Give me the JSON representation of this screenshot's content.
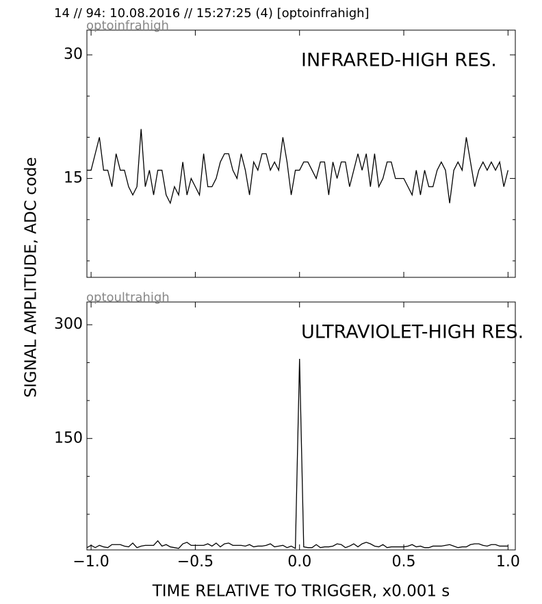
{
  "header": "14 // 94:   10.08.2016 // 15:27:25 (4)  [optoinfrahigh]",
  "xlabel": "TIME RELATIVE TO TRIGGER,   x0.001 s",
  "ylabel": "SIGNAL AMPLITUDE,  ADC code",
  "chart_data": [
    {
      "type": "line",
      "subtitle": "optoinfrahigh",
      "annotation": "INFRARED-HIGH RES.",
      "color": "#000000",
      "x": [
        -1.02,
        -1.0,
        -0.98,
        -0.96,
        -0.94,
        -0.92,
        -0.9,
        -0.88,
        -0.86,
        -0.84,
        -0.82,
        -0.8,
        -0.78,
        -0.76,
        -0.74,
        -0.72,
        -0.7,
        -0.68,
        -0.66,
        -0.64,
        -0.62,
        -0.6,
        -0.58,
        -0.56,
        -0.54,
        -0.52,
        -0.5,
        -0.48,
        -0.46,
        -0.44,
        -0.42,
        -0.4,
        -0.38,
        -0.36,
        -0.34,
        -0.32,
        -0.3,
        -0.28,
        -0.26,
        -0.24,
        -0.22,
        -0.2,
        -0.18,
        -0.16,
        -0.14,
        -0.12,
        -0.1,
        -0.08,
        -0.06,
        -0.04,
        -0.02,
        0.0,
        0.02,
        0.04,
        0.06,
        0.08,
        0.1,
        0.12,
        0.14,
        0.16,
        0.18,
        0.2,
        0.22,
        0.24,
        0.26,
        0.28,
        0.3,
        0.32,
        0.34,
        0.36,
        0.38,
        0.4,
        0.42,
        0.44,
        0.46,
        0.48,
        0.5,
        0.52,
        0.54,
        0.56,
        0.58,
        0.6,
        0.62,
        0.64,
        0.66,
        0.68,
        0.7,
        0.72,
        0.74,
        0.76,
        0.78,
        0.8,
        0.82,
        0.84,
        0.86,
        0.88,
        0.9,
        0.92,
        0.94,
        0.96,
        0.98,
        1.0
      ],
      "values": [
        16,
        16,
        18,
        20,
        16,
        16,
        14,
        18,
        16,
        16,
        14,
        13,
        14,
        21,
        14,
        16,
        13,
        16,
        16,
        13,
        12,
        14,
        13,
        17,
        13,
        15,
        14,
        13,
        18,
        14,
        14,
        15,
        17,
        18,
        18,
        16,
        15,
        18,
        16,
        13,
        17,
        16,
        18,
        18,
        16,
        17,
        16,
        20,
        17,
        13,
        16,
        16,
        17,
        17,
        16,
        15,
        17,
        17,
        13,
        17,
        15,
        17,
        17,
        14,
        16,
        18,
        16,
        18,
        14,
        18,
        14,
        15,
        17,
        17,
        15,
        15,
        15,
        14,
        13,
        16,
        13,
        16,
        14,
        14,
        16,
        17,
        16,
        12,
        16,
        17,
        16,
        20,
        17,
        14,
        16,
        17,
        16,
        17,
        16,
        17,
        14,
        16
      ],
      "xlim": [
        -1.02,
        1.035
      ],
      "ylim": [
        3,
        33
      ],
      "xticks": [
        {
          "value": -1.0,
          "label": "−1.0"
        },
        {
          "value": -0.5,
          "label": "−0.5"
        },
        {
          "value": 0.0,
          "label": "0.0"
        },
        {
          "value": 0.5,
          "label": "0.5"
        },
        {
          "value": 1.0,
          "label": "1.0"
        }
      ],
      "yticks": [
        15,
        30
      ],
      "yminorticks": [
        5,
        10,
        20,
        25
      ]
    },
    {
      "type": "line",
      "subtitle": "optoultrahigh",
      "annotation": "ULTRAVIOLET-HIGH RES.",
      "color": "#000000",
      "x": [
        -1.02,
        -1.0,
        -0.98,
        -0.96,
        -0.94,
        -0.92,
        -0.9,
        -0.88,
        -0.86,
        -0.84,
        -0.82,
        -0.8,
        -0.78,
        -0.76,
        -0.74,
        -0.72,
        -0.7,
        -0.68,
        -0.66,
        -0.64,
        -0.62,
        -0.6,
        -0.58,
        -0.56,
        -0.54,
        -0.52,
        -0.5,
        -0.48,
        -0.46,
        -0.44,
        -0.42,
        -0.4,
        -0.38,
        -0.36,
        -0.34,
        -0.32,
        -0.3,
        -0.28,
        -0.26,
        -0.24,
        -0.22,
        -0.2,
        -0.18,
        -0.16,
        -0.14,
        -0.12,
        -0.1,
        -0.08,
        -0.06,
        -0.04,
        -0.02,
        0.0,
        0.02,
        0.04,
        0.06,
        0.08,
        0.1,
        0.12,
        0.14,
        0.16,
        0.18,
        0.2,
        0.22,
        0.24,
        0.26,
        0.28,
        0.3,
        0.32,
        0.34,
        0.36,
        0.38,
        0.4,
        0.42,
        0.44,
        0.46,
        0.48,
        0.5,
        0.52,
        0.54,
        0.56,
        0.58,
        0.6,
        0.62,
        0.64,
        0.66,
        0.68,
        0.7,
        0.72,
        0.74,
        0.76,
        0.78,
        0.8,
        0.82,
        0.84,
        0.86,
        0.88,
        0.9,
        0.92,
        0.94,
        0.96,
        0.98,
        1.0
      ],
      "values": [
        6,
        9,
        6,
        9,
        7,
        6,
        10,
        10,
        10,
        8,
        7,
        12,
        6,
        8,
        9,
        9,
        9,
        15,
        8,
        10,
        7,
        6,
        5,
        11,
        13,
        9,
        9,
        9,
        9,
        11,
        8,
        12,
        7,
        11,
        12,
        9,
        9,
        9,
        8,
        10,
        7,
        8,
        8,
        9,
        11,
        7,
        8,
        9,
        6,
        8,
        5,
        255,
        7,
        6,
        6,
        10,
        6,
        7,
        7,
        8,
        11,
        10,
        6,
        8,
        11,
        7,
        11,
        13,
        11,
        8,
        7,
        10,
        6,
        7,
        7,
        7,
        7,
        8,
        10,
        7,
        8,
        6,
        6,
        8,
        8,
        8,
        9,
        10,
        8,
        6,
        7,
        7,
        10,
        11,
        11,
        9,
        8,
        10,
        10,
        8,
        8,
        8
      ],
      "xlim": [
        -1.02,
        1.035
      ],
      "ylim": [
        3,
        330
      ],
      "xticks": [
        {
          "value": -1.0,
          "label": "−1.0"
        },
        {
          "value": -0.5,
          "label": "−0.5"
        },
        {
          "value": 0.0,
          "label": "0.0"
        },
        {
          "value": 0.5,
          "label": "0.5"
        },
        {
          "value": 1.0,
          "label": "1.0"
        }
      ],
      "yticks": [
        150,
        300
      ],
      "yminorticks": [
        50,
        100,
        200,
        250
      ]
    }
  ]
}
